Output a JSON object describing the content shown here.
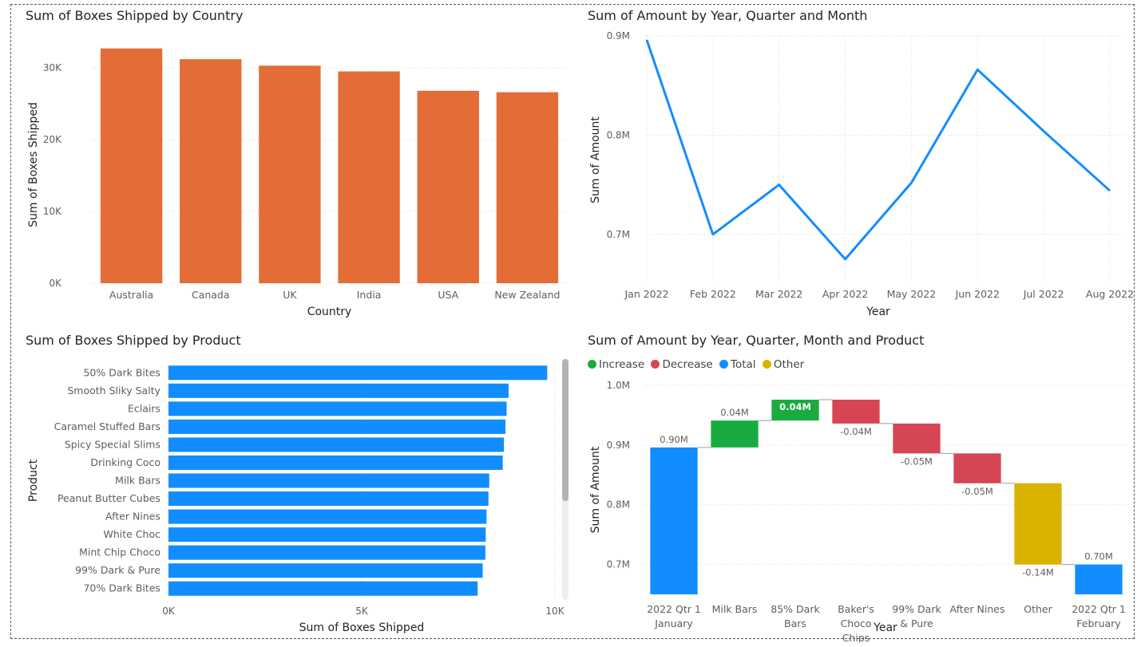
{
  "colors": {
    "bar_orange": "#E46C37",
    "bar_blue": "#118DFF",
    "increase": "#1AAB40",
    "decrease": "#D64554",
    "total": "#118DFF",
    "other": "#D9B300"
  },
  "chart_data": [
    {
      "id": "country",
      "type": "bar",
      "title": "Sum of Boxes Shipped by Country",
      "xlabel": "Country",
      "ylabel": "Sum of Boxes Shipped",
      "categories": [
        "Australia",
        "Canada",
        "UK",
        "India",
        "USA",
        "New Zealand"
      ],
      "values": [
        32700,
        31200,
        30300,
        29500,
        26800,
        26600
      ],
      "ylim": [
        0,
        33000
      ],
      "yticks": [
        0,
        10000,
        20000,
        30000
      ],
      "ytick_labels": [
        "0K",
        "10K",
        "20K",
        "30K"
      ],
      "grid": true
    },
    {
      "id": "amount_month",
      "type": "line",
      "title": "Sum of Amount by Year, Quarter and Month",
      "xlabel": "Year",
      "ylabel": "Sum of Amount",
      "x": [
        "Jan 2022",
        "Feb 2022",
        "Mar 2022",
        "Apr 2022",
        "May 2022",
        "Jun 2022",
        "Jul 2022",
        "Aug 2022"
      ],
      "values": [
        896000,
        700000,
        750000,
        675000,
        752000,
        866000,
        804000,
        744000
      ],
      "ylim": [
        650000,
        900000
      ],
      "yticks": [
        700000,
        800000,
        900000
      ],
      "ytick_labels": [
        "0.7M",
        "0.8M",
        "0.9M"
      ],
      "grid": true
    },
    {
      "id": "product",
      "type": "bar",
      "orientation": "horizontal",
      "title": "Sum of Boxes Shipped by Product",
      "xlabel": "Sum of Boxes Shipped",
      "ylabel": "Product",
      "categories": [
        "50% Dark Bites",
        "Smooth Sliky Salty",
        "Eclairs",
        "Caramel Stuffed Bars",
        "Spicy Special Slims",
        "Drinking Coco",
        "Milk Bars",
        "Peanut Butter Cubes",
        "After Nines",
        "White Choc",
        "Mint Chip Choco",
        "99% Dark & Pure",
        "70% Dark Bites"
      ],
      "values": [
        9800,
        8800,
        8750,
        8720,
        8680,
        8650,
        8300,
        8280,
        8230,
        8210,
        8200,
        8130,
        8000
      ],
      "xlim": [
        0,
        10000
      ],
      "xticks": [
        0,
        5000,
        10000
      ],
      "xtick_labels": [
        "0K",
        "5K",
        "10K"
      ],
      "grid": true
    },
    {
      "id": "waterfall",
      "type": "waterfall",
      "title": "Sum of Amount by Year, Quarter, Month and Product",
      "xlabel": "Year",
      "ylabel": "Sum of Amount",
      "legend": [
        "Increase",
        "Decrease",
        "Total",
        "Other"
      ],
      "legend_position": "top-left",
      "categories": [
        [
          "2022 Qtr 1",
          "January"
        ],
        [
          "Milk Bars"
        ],
        [
          "85% Dark",
          "Bars"
        ],
        [
          "Baker's",
          "Choco",
          "Chips"
        ],
        [
          "99% Dark",
          "& Pure"
        ],
        [
          "After Nines"
        ],
        [
          "Other"
        ],
        [
          "2022 Qtr 1",
          "February"
        ]
      ],
      "bars": [
        {
          "kind": "total",
          "value": 896000,
          "label": "0.90M"
        },
        {
          "kind": "increase",
          "value": 45000,
          "label": "0.04M"
        },
        {
          "kind": "increase",
          "value": 35000,
          "label": "0.04M"
        },
        {
          "kind": "decrease",
          "value": -40000,
          "label": "-0.04M"
        },
        {
          "kind": "decrease",
          "value": -50000,
          "label": "-0.05M"
        },
        {
          "kind": "decrease",
          "value": -50000,
          "label": "-0.05M"
        },
        {
          "kind": "other",
          "value": -136000,
          "label": "-0.14M"
        },
        {
          "kind": "total",
          "value": 700000,
          "label": "0.70M"
        }
      ],
      "ylim": [
        650000,
        1000000
      ],
      "yticks": [
        700000,
        800000,
        900000,
        1000000
      ],
      "ytick_labels": [
        "0.7M",
        "0.8M",
        "0.9M",
        "1.0M"
      ],
      "grid": true
    }
  ]
}
